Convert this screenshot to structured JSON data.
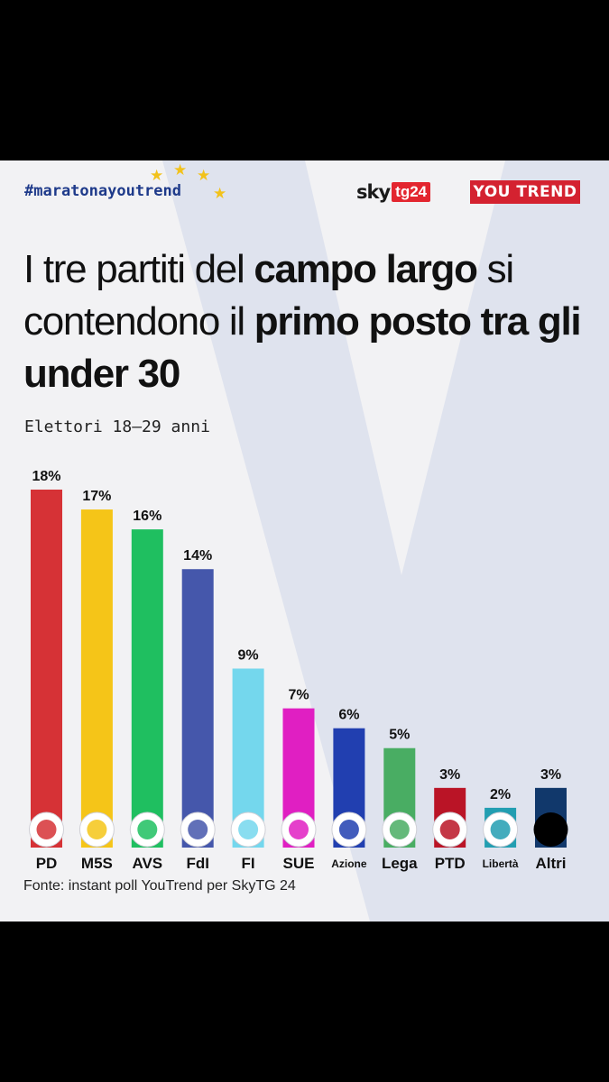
{
  "header": {
    "hashtag": "#maratonayoutrend",
    "sky_word": "sky",
    "sky_box": "tg24",
    "youtrend": "YOU TREND"
  },
  "title": {
    "part1": "I tre partiti del ",
    "bold1": "campo largo",
    "part2": " si contendono il ",
    "bold2": "primo posto tra gli under 30"
  },
  "subtitle": "Elettori 18–29 anni",
  "source": "Fonte: instant poll YouTrend per SkyTG 24",
  "colors": {
    "star": "#f2c21b",
    "accent": "#1e3a8a",
    "brand_red": "#d42230"
  },
  "chart_data": {
    "type": "bar",
    "title": "I tre partiti del campo largo si contendono il primo posto tra gli under 30",
    "subtitle": "Elettori 18–29 anni",
    "categories": [
      "PD",
      "M5S",
      "AVS",
      "FdI",
      "FI",
      "SUE",
      "Azione",
      "Lega",
      "PTD",
      "Libertà",
      "Altri"
    ],
    "values": [
      18,
      17,
      16,
      14,
      9,
      7,
      6,
      5,
      3,
      2,
      3
    ],
    "value_labels": [
      "18%",
      "17%",
      "16%",
      "14%",
      "9%",
      "7%",
      "6%",
      "5%",
      "3%",
      "2%",
      "3%"
    ],
    "colors": [
      "#d63236",
      "#f5c518",
      "#1fbf60",
      "#4557ab",
      "#74d7ed",
      "#e01fc2",
      "#213fb0",
      "#49ad63",
      "#ba1426",
      "#229eb1",
      "#11386b"
    ],
    "logo_icons": [
      "pd-logo-icon",
      "m5s-logo-icon",
      "avs-logo-icon",
      "fdi-logo-icon",
      "fi-logo-icon",
      "sue-logo-icon",
      "azione-logo-icon",
      "lega-logo-icon",
      "ptd-logo-icon",
      "liberta-logo-icon",
      "altri-dot-icon"
    ],
    "small_label_categories": [
      "Azione",
      "Libertà"
    ],
    "ylim": [
      0,
      18
    ],
    "grid": false,
    "legend": "none"
  }
}
